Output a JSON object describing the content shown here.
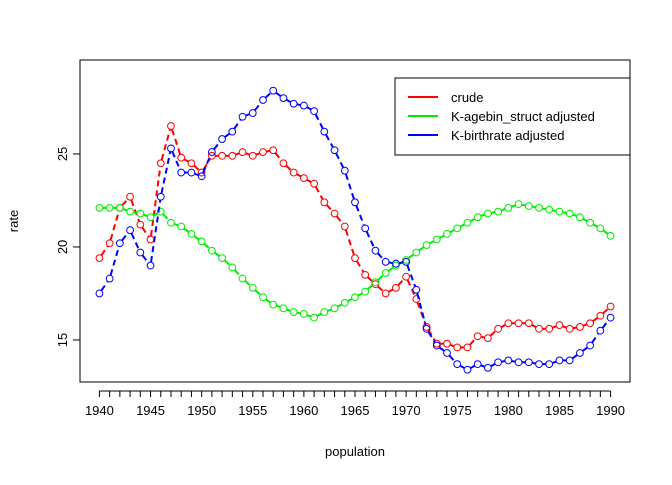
{
  "chart_data": {
    "type": "line",
    "title": "",
    "xlabel": "population",
    "ylabel": "rate",
    "xlim": [
      1938.1,
      1991.9
    ],
    "ylim": [
      12.74,
      30.05
    ],
    "xticks": [
      1940,
      1945,
      1950,
      1955,
      1960,
      1965,
      1970,
      1975,
      1980,
      1985,
      1990
    ],
    "yticks": [
      15,
      20,
      25
    ],
    "x_minor_ticks_every": 1,
    "grid": false,
    "legend_placement": "top-right",
    "line_style": "dashed with open circle markers",
    "x": [
      1940,
      1941,
      1942,
      1943,
      1944,
      1945,
      1946,
      1947,
      1948,
      1949,
      1950,
      1951,
      1952,
      1953,
      1954,
      1955,
      1956,
      1957,
      1958,
      1959,
      1960,
      1961,
      1962,
      1963,
      1964,
      1965,
      1966,
      1967,
      1968,
      1969,
      1970,
      1971,
      1972,
      1973,
      1974,
      1975,
      1976,
      1977,
      1978,
      1979,
      1980,
      1981,
      1982,
      1983,
      1984,
      1985,
      1986,
      1987,
      1988,
      1989,
      1990
    ],
    "series": [
      {
        "name": "crude",
        "color": "#ff0000",
        "values": [
          19.4,
          20.2,
          22.1,
          22.7,
          21.2,
          20.4,
          24.5,
          26.5,
          24.8,
          24.5,
          24.0,
          24.9,
          24.9,
          24.9,
          25.1,
          24.9,
          25.1,
          25.2,
          24.5,
          24.0,
          23.7,
          23.4,
          22.4,
          21.8,
          21.1,
          19.4,
          18.5,
          18.0,
          17.5,
          17.8,
          18.4,
          17.2,
          15.7,
          14.8,
          14.8,
          14.6,
          14.6,
          15.2,
          15.1,
          15.6,
          15.9,
          15.9,
          15.9,
          15.6,
          15.6,
          15.8,
          15.6,
          15.7,
          15.9,
          16.3,
          16.8
        ]
      },
      {
        "name": "K-agebin_struct adjusted",
        "color": "#00ee00",
        "values": [
          22.1,
          22.1,
          22.1,
          21.9,
          21.8,
          21.6,
          21.9,
          21.3,
          21.1,
          20.7,
          20.3,
          19.8,
          19.4,
          18.9,
          18.3,
          17.8,
          17.3,
          16.9,
          16.7,
          16.5,
          16.4,
          16.2,
          16.5,
          16.7,
          17.0,
          17.3,
          17.6,
          18.1,
          18.6,
          19.0,
          19.3,
          19.7,
          20.1,
          20.4,
          20.7,
          21.0,
          21.3,
          21.6,
          21.8,
          21.9,
          22.1,
          22.3,
          22.2,
          22.1,
          22.0,
          21.9,
          21.8,
          21.6,
          21.3,
          21.0,
          20.6
        ]
      },
      {
        "name": "K-birthrate adjusted",
        "color": "#0000ff",
        "values": [
          17.5,
          18.3,
          20.2,
          20.9,
          19.7,
          19.0,
          22.7,
          25.3,
          24.0,
          24.0,
          23.8,
          25.1,
          25.8,
          26.2,
          27.0,
          27.2,
          27.9,
          28.4,
          28.0,
          27.7,
          27.6,
          27.3,
          26.2,
          25.2,
          24.1,
          22.4,
          21.0,
          19.8,
          19.2,
          19.1,
          19.2,
          17.7,
          15.6,
          14.7,
          14.3,
          13.7,
          13.4,
          13.7,
          13.5,
          13.8,
          13.9,
          13.8,
          13.8,
          13.7,
          13.7,
          13.9,
          13.9,
          14.3,
          14.7,
          15.5,
          16.2
        ]
      }
    ]
  }
}
